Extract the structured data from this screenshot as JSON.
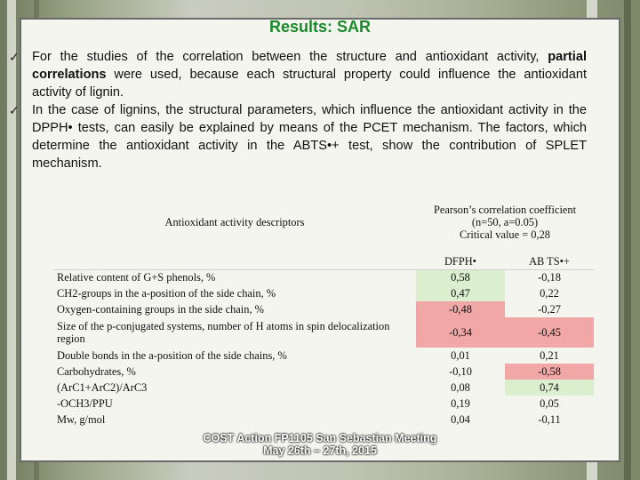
{
  "title": "Results: SAR",
  "bullets": [
    {
      "parts": [
        {
          "text": "For the studies of the correlation between the structure and antioxidant activity, ",
          "bold": false
        },
        {
          "text": "partial correlations",
          "bold": true
        },
        {
          "text": " were used, because each structural property could influence the antioxidant activity of lignin.",
          "bold": false
        }
      ]
    },
    {
      "parts": [
        {
          "text": "In the case of lignins, the structural parameters, which influence the antioxidant activity in the DPPH• tests, can easily be explained by means of the PCET mechanism. The factors, which determine the antioxidant activity in the ABTS•+ test, show the contribution of SPLET mechanism.",
          "bold": false
        }
      ]
    }
  ],
  "table": {
    "descriptor_header": "Antioxidant activity descriptors",
    "pearson_header_lines": [
      "Pearson’s correlation coefficient",
      "(n=50, a=0.05)",
      "Critical value = 0,28"
    ],
    "col_dpph": "DFPH•",
    "col_abts": "AB TS•+",
    "rows": [
      {
        "label": "Relative content of G+S phenols, %",
        "dpph": "0,58",
        "abts": "-0,18",
        "dpph_hl": "green",
        "abts_hl": ""
      },
      {
        "label": "CH2-groups in the a-position of the side chain, %",
        "dpph": "0,47",
        "abts": "0,22",
        "dpph_hl": "green",
        "abts_hl": ""
      },
      {
        "label": "Oxygen-containing groups in the side chain, %",
        "dpph": "-0,48",
        "abts": "-0,27",
        "dpph_hl": "red",
        "abts_hl": ""
      },
      {
        "label": "Size of the p-conjugated systems, number of H atoms in spin delocalization region",
        "dpph": "-0,34",
        "abts": "-0,45",
        "dpph_hl": "red",
        "abts_hl": "red"
      },
      {
        "label": "Double bonds in the a-position of the side chains, %",
        "dpph": "0,01",
        "abts": "0,21",
        "dpph_hl": "",
        "abts_hl": ""
      },
      {
        "label": "Carbohydrates, %",
        "dpph": "-0,10",
        "abts": "-0,58",
        "dpph_hl": "",
        "abts_hl": "red"
      },
      {
        "label": "(ArC1+ArC2)/ArC3",
        "dpph": "0,08",
        "abts": "0,74",
        "dpph_hl": "",
        "abts_hl": "green"
      },
      {
        "label": "-OCH3/PPU",
        "dpph": "0,19",
        "abts": "0,05",
        "dpph_hl": "",
        "abts_hl": ""
      },
      {
        "label": "Mw, g/mol",
        "dpph": "0,04",
        "abts": "-0,11",
        "dpph_hl": "",
        "abts_hl": ""
      }
    ]
  },
  "footer": {
    "line1": "COST Action FP1105 San Sebastian Meeting",
    "line2": "May 26th – 27th, 2015"
  },
  "colors": {
    "title": "#1a8a2a",
    "highlight_positive": "#dbefcf",
    "highlight_negative": "#f2a7a7"
  }
}
